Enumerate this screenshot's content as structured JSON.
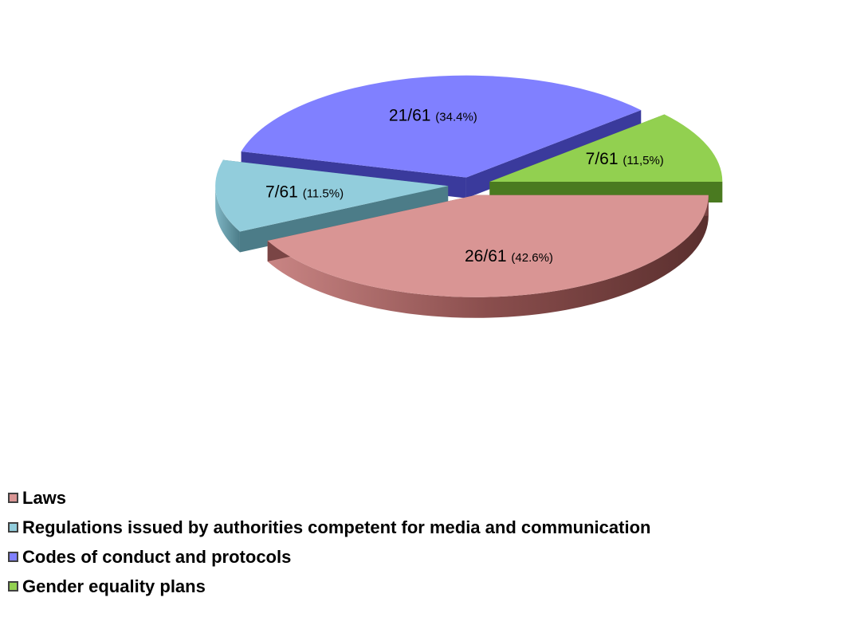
{
  "chart_data": {
    "type": "pie",
    "title": "",
    "total": 61,
    "slices": [
      {
        "name": "Laws",
        "count": 26,
        "count_label": "26/61",
        "percent_label": "(42.6%)",
        "value": 42.6,
        "color": "#D99594",
        "side_color": "#7A4545"
      },
      {
        "name": "Regulations issued by authorities competent for media and communication",
        "count": 7,
        "count_label": "7/61",
        "percent_label": "(11.5%)",
        "value": 11.5,
        "color": "#92CDDC",
        "side_color": "#4C7C88"
      },
      {
        "name": "Codes of conduct and protocols",
        "count": 21,
        "count_label": "21/61",
        "percent_label": "(34.4%)",
        "value": 34.4,
        "color": "#8080FF",
        "side_color": "#3A3A9C"
      },
      {
        "name": "Gender equality plans",
        "count": 7,
        "count_label": "7/61",
        "percent_label": "(11,5%)",
        "value": 11.5,
        "color": "#92D050",
        "side_color": "#4A7A20"
      }
    ],
    "legend_position": "bottom-left",
    "style": "3d-exploded"
  }
}
